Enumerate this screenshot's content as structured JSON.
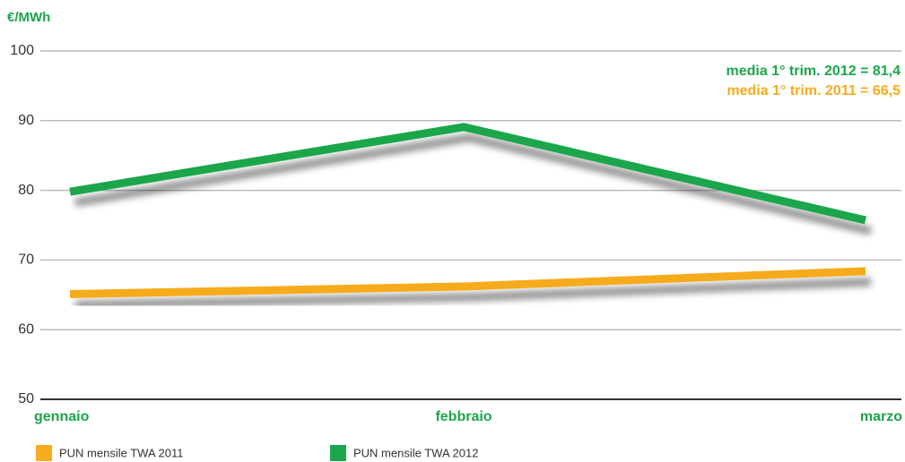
{
  "chart_data": {
    "type": "line",
    "y_label": "€/MWh",
    "categories": [
      "gennaio",
      "febbraio",
      "marzo"
    ],
    "series": [
      {
        "name": "PUN mensile TWA 2011",
        "color": "#f6ab1e",
        "values": [
          65.1,
          66.2,
          68.4
        ]
      },
      {
        "name": "PUN mensile TWA 2012",
        "color": "#1ba64b",
        "values": [
          79.8,
          89.1,
          75.7
        ]
      }
    ],
    "annotations": [
      {
        "text": "media 1° trim. 2012 = 81,4",
        "color": "#1ba64b"
      },
      {
        "text": "media 1° trim. 2011 = 66,5",
        "color": "#f6ab1e"
      }
    ],
    "ylim": [
      50,
      100
    ],
    "yticks": [
      50,
      60,
      70,
      80,
      90,
      100
    ],
    "grid": true
  }
}
